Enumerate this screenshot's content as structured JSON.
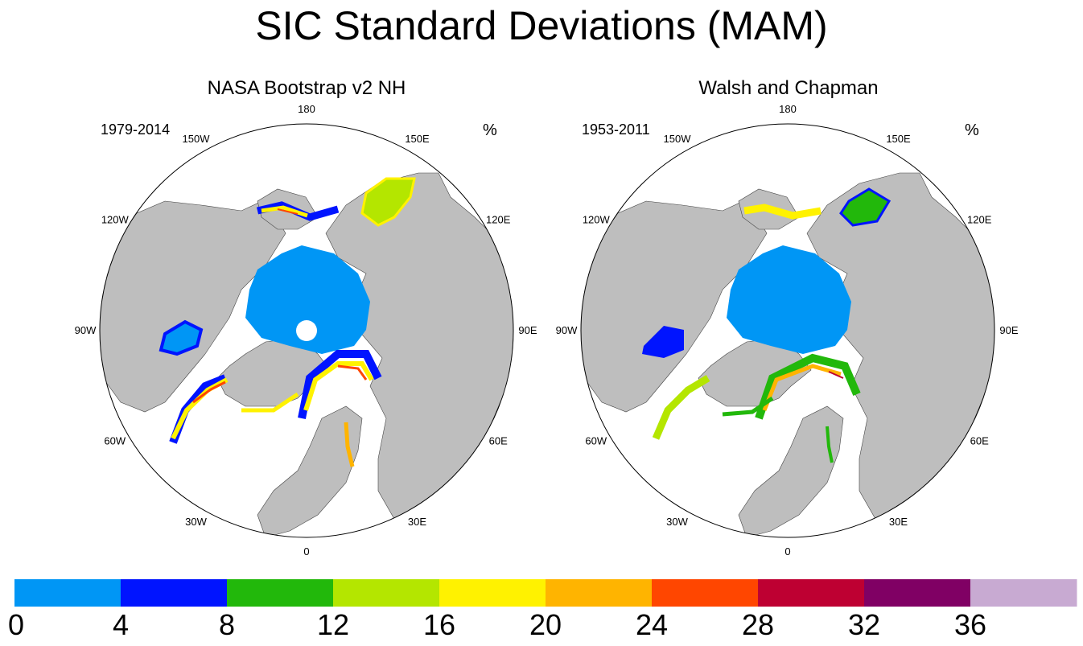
{
  "title": "SIC Standard Deviations (MAM)",
  "panels": [
    {
      "title": "NASA Bootstrap v2 NH",
      "period": "1979-2014",
      "units": "%"
    },
    {
      "title": "Walsh and Chapman",
      "period": "1953-2011",
      "units": "%"
    }
  ],
  "longitude_labels": [
    "180",
    "150E",
    "120E",
    "90E",
    "60E",
    "30E",
    "0",
    "30W",
    "60W",
    "90W",
    "120W",
    "150W"
  ],
  "chart_data": {
    "type": "heatmap",
    "title": "SIC Standard Deviations (MAM)",
    "projection": "north polar stereographic",
    "variable": "sea ice concentration standard deviation",
    "units": "%",
    "panels": [
      {
        "name": "NASA Bootstrap v2 NH",
        "period": "1979-2014"
      },
      {
        "name": "Walsh and Chapman",
        "period": "1953-2011"
      }
    ],
    "colorbar": {
      "levels": [
        0,
        4,
        8,
        12,
        16,
        20,
        24,
        28,
        32,
        36
      ],
      "tick_labels": [
        "0",
        "4",
        "8",
        "12",
        "16",
        "20",
        "24",
        "28",
        "32",
        "36"
      ],
      "colors": [
        "#0096f5",
        "#0014ff",
        "#22b80b",
        "#b4e600",
        "#fff200",
        "#ffb400",
        "#ff4600",
        "#be0032",
        "#800064",
        "#c8aad2"
      ]
    },
    "land_color": "#bebebe"
  }
}
